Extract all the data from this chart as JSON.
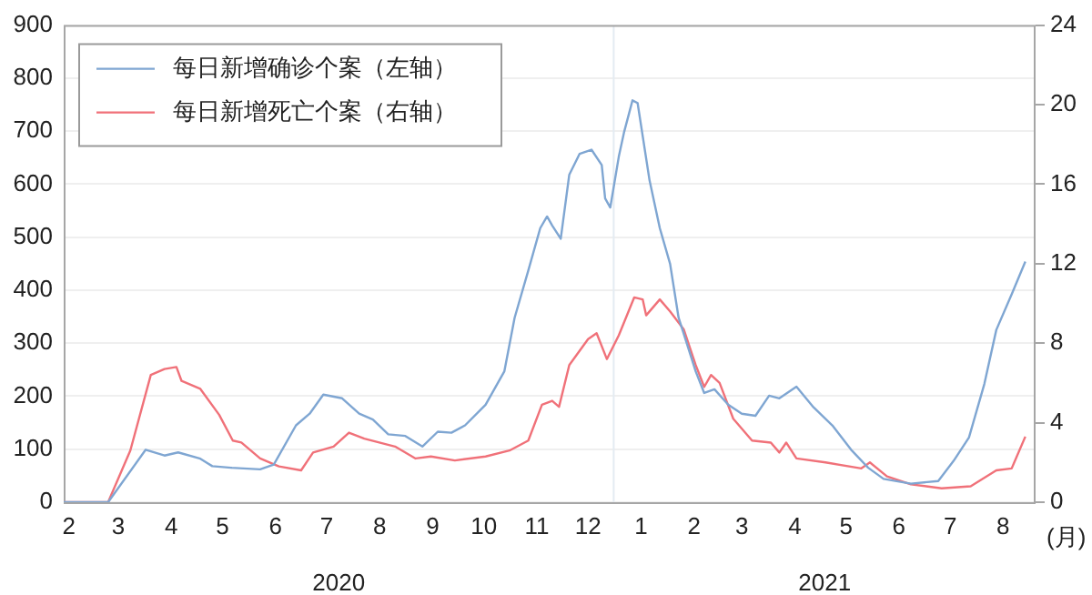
{
  "chart_data": {
    "type": "line",
    "xlabel": "(月)",
    "xlim": [
      "2020-02-14",
      "2021-09-05"
    ],
    "xticks": [
      {
        "value": "2020-02-17",
        "label": "2"
      },
      {
        "value": "2020-03-17",
        "label": "3"
      },
      {
        "value": "2020-04-17",
        "label": "4"
      },
      {
        "value": "2020-05-17",
        "label": "5"
      },
      {
        "value": "2020-06-17",
        "label": "6"
      },
      {
        "value": "2020-07-17",
        "label": "7"
      },
      {
        "value": "2020-08-17",
        "label": "8"
      },
      {
        "value": "2020-09-17",
        "label": "9"
      },
      {
        "value": "2020-10-17",
        "label": "10"
      },
      {
        "value": "2020-11-17",
        "label": "11"
      },
      {
        "value": "2020-12-17",
        "label": "12"
      },
      {
        "value": "2021-01-17",
        "label": "1"
      },
      {
        "value": "2021-02-17",
        "label": "2"
      },
      {
        "value": "2021-03-17",
        "label": "3"
      },
      {
        "value": "2021-04-17",
        "label": "4"
      },
      {
        "value": "2021-05-17",
        "label": "5"
      },
      {
        "value": "2021-06-17",
        "label": "6"
      },
      {
        "value": "2021-07-17",
        "label": "7"
      },
      {
        "value": "2021-08-17",
        "label": "8"
      }
    ],
    "ylim": [
      0,
      900
    ],
    "yticks": [
      0,
      100,
      200,
      300,
      400,
      500,
      600,
      700,
      800,
      900
    ],
    "y2lim": [
      0,
      24
    ],
    "y2ticks": [
      0,
      4,
      8,
      12,
      16,
      20,
      24
    ],
    "grid": "y",
    "legend": "top left",
    "marker": "none",
    "line_style": "solid",
    "ref_lines": [
      {
        "axis": "x",
        "value": "2021-01-01",
        "color": "#e4ebf2"
      }
    ],
    "annotations": [
      "2020",
      "2021"
    ],
    "series": [
      {
        "name": "每日新增确诊个案（左轴）",
        "color": "#7fa6d2",
        "x": [
          "2020-02-14",
          "2020-03-11",
          "2020-04-02",
          "2020-04-13",
          "2020-04-21",
          "2020-05-04",
          "2020-05-11",
          "2020-05-22",
          "2020-06-08",
          "2020-06-16",
          "2020-06-29",
          "2020-07-07",
          "2020-07-15",
          "2020-07-26",
          "2020-08-05",
          "2020-08-13",
          "2020-08-22",
          "2020-09-01",
          "2020-09-11",
          "2020-09-20",
          "2020-09-28",
          "2020-10-06",
          "2020-10-18",
          "2020-10-29",
          "2020-11-04",
          "2020-11-12",
          "2020-11-19",
          "2020-11-23",
          "2020-11-26",
          "2020-12-01",
          "2020-12-06",
          "2020-12-12",
          "2020-12-19",
          "2020-12-25",
          "2020-12-27",
          "2020-12-30",
          "2021-01-04",
          "2021-01-07",
          "2021-01-12",
          "2021-01-15",
          "2021-01-22",
          "2021-01-28",
          "2021-02-03",
          "2021-02-08",
          "2021-02-18",
          "2021-02-23",
          "2021-03-01",
          "2021-03-09",
          "2021-03-17",
          "2021-03-25",
          "2021-04-02",
          "2021-04-08",
          "2021-04-18",
          "2021-04-28",
          "2021-05-09",
          "2021-05-20",
          "2021-05-30",
          "2021-06-08",
          "2021-06-24",
          "2021-07-10",
          "2021-07-19",
          "2021-07-28",
          "2021-08-06",
          "2021-08-13",
          "2021-08-22",
          "2021-08-30"
        ],
        "values": [
          0,
          0,
          99,
          88,
          94,
          82,
          68,
          65,
          62,
          71,
          145,
          167,
          203,
          196,
          167,
          156,
          128,
          125,
          105,
          133,
          131,
          145,
          184,
          247,
          348,
          437,
          517,
          539,
          522,
          497,
          618,
          657,
          665,
          636,
          573,
          556,
          652,
          697,
          758,
          753,
          607,
          517,
          450,
          348,
          247,
          206,
          213,
          184,
          167,
          163,
          201,
          196,
          218,
          179,
          145,
          99,
          65,
          44,
          35,
          40,
          78,
          122,
          223,
          325,
          392,
          454
        ]
      },
      {
        "name": "每日新增死亡个案（右轴）",
        "color": "#f07179",
        "axis": "y2",
        "x": [
          "2020-02-14",
          "2020-03-11",
          "2020-03-24",
          "2020-04-05",
          "2020-04-13",
          "2020-04-20",
          "2020-04-23",
          "2020-05-04",
          "2020-05-15",
          "2020-05-23",
          "2020-05-28",
          "2020-06-08",
          "2020-06-19",
          "2020-07-02",
          "2020-07-09",
          "2020-07-21",
          "2020-07-30",
          "2020-08-08",
          "2020-08-26",
          "2020-09-07",
          "2020-09-16",
          "2020-09-30",
          "2020-10-18",
          "2020-11-01",
          "2020-11-12",
          "2020-11-20",
          "2020-11-26",
          "2020-11-30",
          "2020-12-06",
          "2020-12-17",
          "2020-12-22",
          "2020-12-28",
          "2021-01-04",
          "2021-01-13",
          "2021-01-18",
          "2021-01-20",
          "2021-01-28",
          "2021-02-03",
          "2021-02-11",
          "2021-02-18",
          "2021-02-23",
          "2021-02-27",
          "2021-03-04",
          "2021-03-12",
          "2021-03-23",
          "2021-04-03",
          "2021-04-08",
          "2021-04-12",
          "2021-04-18",
          "2021-05-05",
          "2021-05-26",
          "2021-05-31",
          "2021-06-10",
          "2021-06-24",
          "2021-07-12",
          "2021-07-29",
          "2021-08-13",
          "2021-08-22",
          "2021-08-30"
        ],
        "values": [
          0,
          0,
          2.6,
          6.4,
          6.7,
          6.8,
          6.1,
          5.7,
          4.4,
          3.1,
          3.0,
          2.2,
          1.8,
          1.6,
          2.5,
          2.8,
          3.5,
          3.2,
          2.8,
          2.2,
          2.3,
          2.1,
          2.3,
          2.6,
          3.1,
          4.9,
          5.1,
          4.8,
          6.9,
          8.2,
          8.5,
          7.2,
          8.4,
          10.3,
          10.2,
          9.4,
          10.2,
          9.6,
          8.7,
          6.9,
          5.8,
          6.4,
          6.0,
          4.2,
          3.1,
          3.0,
          2.5,
          3.0,
          2.2,
          2.0,
          1.7,
          2.0,
          1.3,
          0.9,
          0.7,
          0.8,
          1.6,
          1.7,
          3.3
        ]
      }
    ]
  }
}
